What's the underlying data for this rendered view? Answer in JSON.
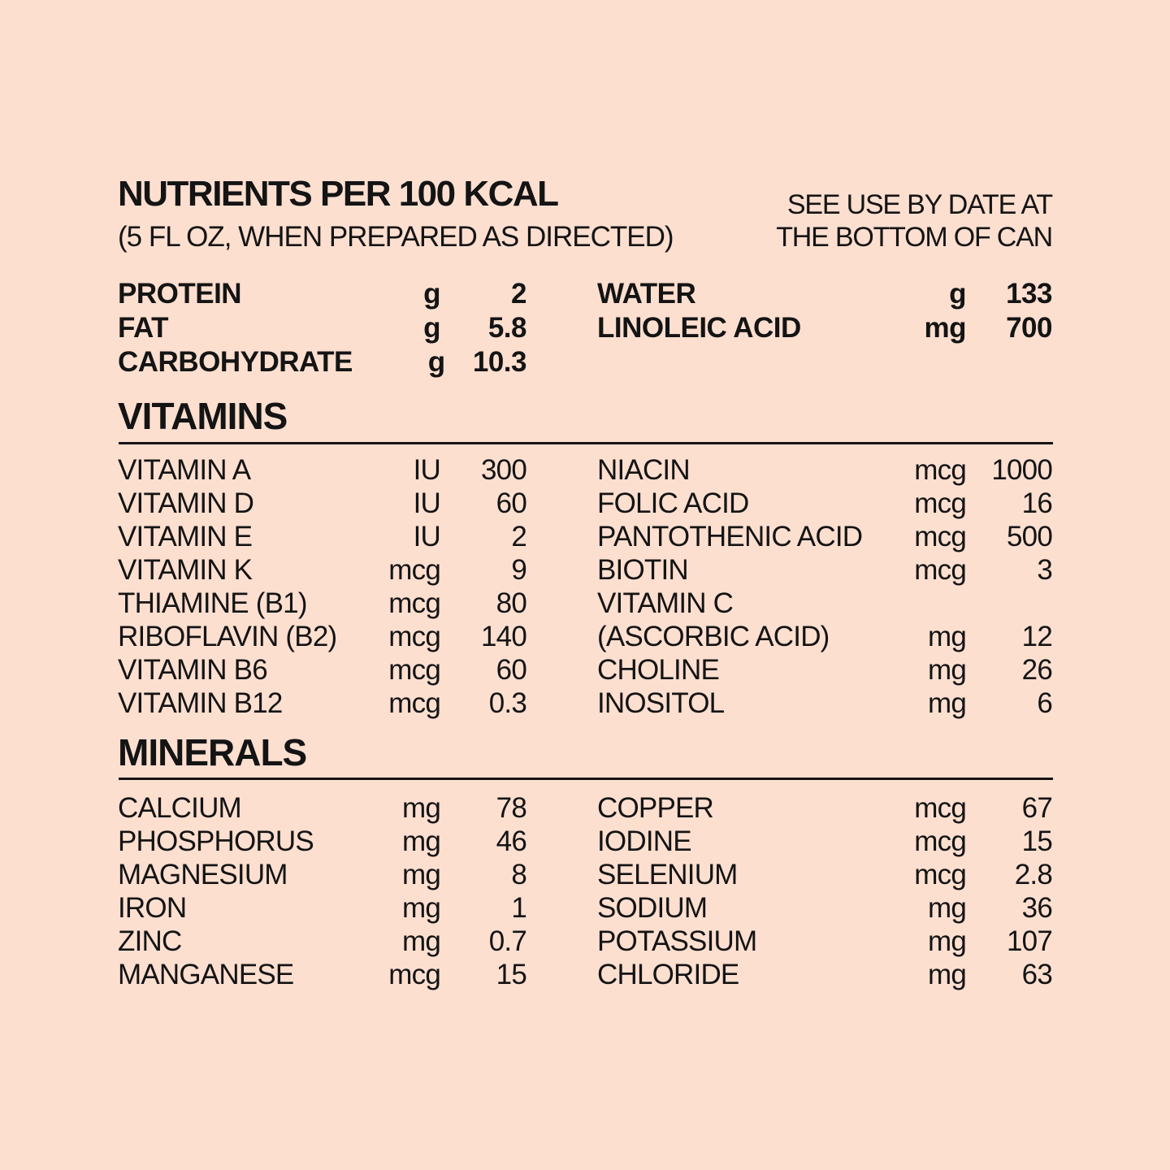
{
  "header": {
    "title": "NUTRIENTS PER 100 KCAL",
    "subtitle": "(5 FL OZ, WHEN PREPARED AS DIRECTED)",
    "use_by_line1": "SEE USE BY DATE AT",
    "use_by_line2": "THE BOTTOM OF CAN"
  },
  "macros": {
    "left": [
      {
        "name": "PROTEIN",
        "unit": "g",
        "value": "2"
      },
      {
        "name": "FAT",
        "unit": "g",
        "value": "5.8"
      },
      {
        "name": "CARBOHYDRATE",
        "unit": "g",
        "value": "10.3"
      }
    ],
    "right": [
      {
        "name": "WATER",
        "unit": "g",
        "value": "133"
      },
      {
        "name": "LINOLEIC ACID",
        "unit": "mg",
        "value": "700"
      }
    ]
  },
  "vitamins": {
    "heading": "VITAMINS",
    "left": [
      {
        "name": "VITAMIN A",
        "unit": "IU",
        "value": "300"
      },
      {
        "name": "VITAMIN D",
        "unit": "IU",
        "value": "60"
      },
      {
        "name": "VITAMIN E",
        "unit": "IU",
        "value": "2"
      },
      {
        "name": "VITAMIN K",
        "unit": "mcg",
        "value": "9"
      },
      {
        "name": "THIAMINE (B1)",
        "unit": "mcg",
        "value": "80"
      },
      {
        "name": "RIBOFLAVIN (B2)",
        "unit": "mcg",
        "value": "140"
      },
      {
        "name": "VITAMIN B6",
        "unit": "mcg",
        "value": "60"
      },
      {
        "name": "VITAMIN B12",
        "unit": "mcg",
        "value": "0.3"
      }
    ],
    "right": [
      {
        "name": "NIACIN",
        "unit": "mcg",
        "value": "1000"
      },
      {
        "name": "FOLIC ACID",
        "unit": "mcg",
        "value": "16"
      },
      {
        "name": "PANTOTHENIC ACID",
        "unit": "mcg",
        "value": "500"
      },
      {
        "name": "BIOTIN",
        "unit": "mcg",
        "value": "3"
      },
      {
        "name": "VITAMIN C",
        "unit": "",
        "value": ""
      },
      {
        "name": "(ASCORBIC ACID)",
        "unit": "mg",
        "value": "12"
      },
      {
        "name": "CHOLINE",
        "unit": "mg",
        "value": "26"
      },
      {
        "name": "INOSITOL",
        "unit": "mg",
        "value": "6"
      }
    ]
  },
  "minerals": {
    "heading": "MINERALS",
    "left": [
      {
        "name": "CALCIUM",
        "unit": "mg",
        "value": "78"
      },
      {
        "name": "PHOSPHORUS",
        "unit": "mg",
        "value": "46"
      },
      {
        "name": "MAGNESIUM",
        "unit": "mg",
        "value": "8"
      },
      {
        "name": "IRON",
        "unit": "mg",
        "value": "1"
      },
      {
        "name": "ZINC",
        "unit": "mg",
        "value": "0.7"
      },
      {
        "name": "MANGANESE",
        "unit": "mcg",
        "value": "15"
      }
    ],
    "right": [
      {
        "name": "COPPER",
        "unit": "mcg",
        "value": "67"
      },
      {
        "name": "IODINE",
        "unit": "mcg",
        "value": "15"
      },
      {
        "name": "SELENIUM",
        "unit": "mcg",
        "value": "2.8"
      },
      {
        "name": "SODIUM",
        "unit": "mg",
        "value": "36"
      },
      {
        "name": "POTASSIUM",
        "unit": "mg",
        "value": "107"
      },
      {
        "name": "CHLORIDE",
        "unit": "mg",
        "value": "63"
      }
    ]
  }
}
